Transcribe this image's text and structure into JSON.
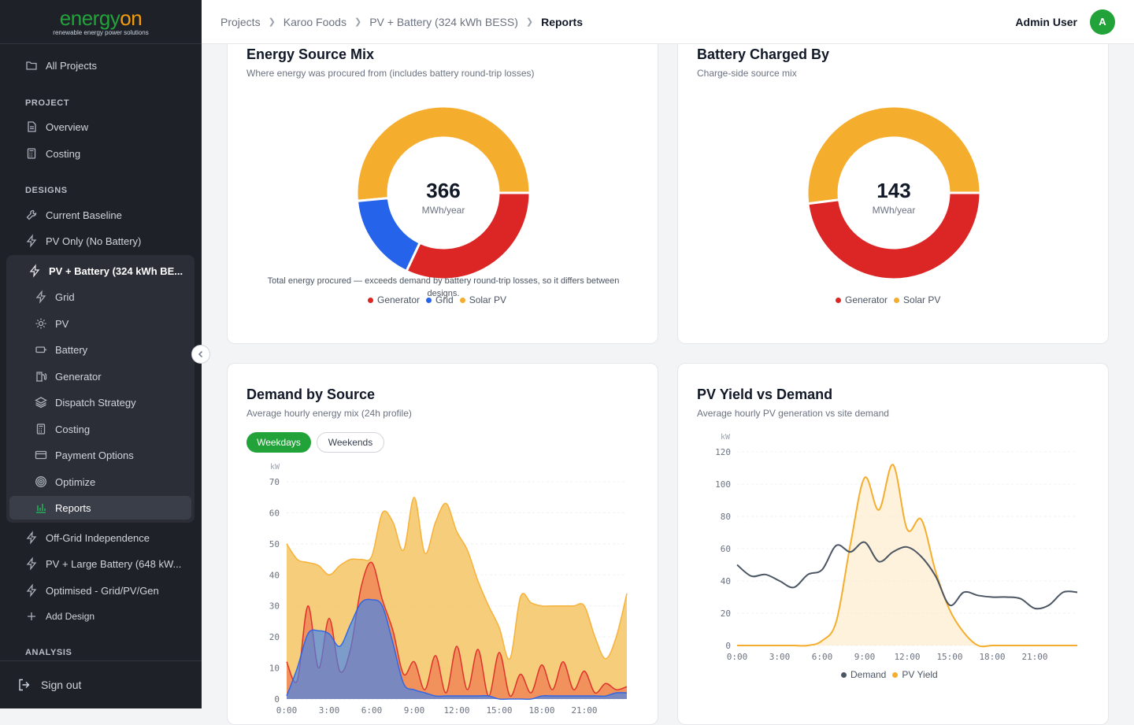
{
  "brand": {
    "name_part1": "energy",
    "name_part2": "on",
    "tagline": "renewable energy power solutions"
  },
  "sidebar": {
    "all_projects": "All Projects",
    "project_label": "PROJECT",
    "project_items": [
      "Overview",
      "Costing"
    ],
    "designs_label": "DESIGNS",
    "designs": [
      "Current Baseline",
      "PV Only (No Battery)",
      "PV + Battery (324 kWh BE..."
    ],
    "sub_items": [
      "Grid",
      "PV",
      "Battery",
      "Generator",
      "Dispatch Strategy",
      "Costing",
      "Payment Options",
      "Optimize",
      "Reports"
    ],
    "active_sub": "Reports",
    "more_designs": [
      "Off-Grid Independence",
      "PV + Large Battery (648 kW...",
      "Optimised - Grid/PV/Gen"
    ],
    "add_design": "Add Design",
    "analysis_label": "ANALYSIS",
    "sign_out": "Sign out"
  },
  "breadcrumb": [
    "Projects",
    "Karoo Foods",
    "PV + Battery (324 kWh BESS)",
    "Reports"
  ],
  "user": {
    "name": "Admin User",
    "initial": "A"
  },
  "colors": {
    "generator": "#dc2626",
    "grid": "#2563eb",
    "solar": "#f5ad2e",
    "demand": "#4b5563",
    "brand": "#22a33a"
  },
  "energy_mix": {
    "title": "Energy Source Mix",
    "subtitle": "Where energy was procured from (includes battery round-trip losses)",
    "total": "366",
    "unit": "MWh/year",
    "note": "Total energy procured — exceeds demand by battery round-trip losses, so it differs between designs.",
    "legend": [
      "Generator",
      "Grid",
      "Solar PV"
    ]
  },
  "battery_charged": {
    "title": "Battery Charged By",
    "subtitle": "Charge-side source mix",
    "total": "143",
    "unit": "MWh/year",
    "legend": [
      "Generator",
      "Solar PV"
    ]
  },
  "demand_by_source": {
    "title": "Demand by Source",
    "subtitle": "Average hourly energy mix (24h profile)",
    "tabs": [
      "Weekdays",
      "Weekends"
    ],
    "active_tab": "Weekdays"
  },
  "pv_yield": {
    "title": "PV Yield vs Demand",
    "subtitle": "Average hourly PV generation vs site demand",
    "legend": [
      "Demand",
      "PV Yield"
    ]
  },
  "chart_data": [
    {
      "type": "pie",
      "title": "Energy Source Mix",
      "labels": [
        "Solar PV",
        "Grid",
        "Generator"
      ],
      "values": [
        51.5,
        16.5,
        32.0
      ],
      "center_value": 366,
      "center_unit": "MWh/year"
    },
    {
      "type": "pie",
      "title": "Battery Charged By",
      "labels": [
        "Solar PV",
        "Generator"
      ],
      "values": [
        52,
        48
      ],
      "center_value": 143,
      "center_unit": "MWh/year"
    },
    {
      "type": "area",
      "title": "Demand by Source",
      "ylabel": "kW",
      "ylim": [
        0,
        70
      ],
      "yticks": [
        0,
        10,
        20,
        30,
        40,
        50,
        60,
        70
      ],
      "xticks": [
        "0:00",
        "3:00",
        "6:00",
        "9:00",
        "12:00",
        "15:00",
        "18:00",
        "21:00"
      ],
      "x": [
        "0:00",
        "0:45",
        "1:30",
        "2:15",
        "3:00",
        "3:45",
        "4:30",
        "5:15",
        "6:00",
        "6:45",
        "7:30",
        "8:15",
        "9:00",
        "9:45",
        "10:30",
        "11:15",
        "12:00",
        "12:45",
        "13:30",
        "14:15",
        "15:00",
        "15:45",
        "16:30",
        "17:15",
        "18:00",
        "18:45",
        "19:30",
        "20:15",
        "21:00",
        "21:45",
        "22:30",
        "23:15",
        "23:59"
      ],
      "series": [
        {
          "name": "Grid",
          "values": [
            1,
            10,
            21,
            22,
            21,
            17,
            24,
            31,
            32,
            30,
            18,
            5,
            3,
            2,
            1,
            1,
            1,
            1,
            1,
            1,
            0,
            0,
            0,
            0,
            1,
            1,
            1,
            1,
            1,
            1,
            1,
            2,
            2
          ]
        },
        {
          "name": "Generator",
          "values": [
            12,
            6,
            30,
            10,
            26,
            9,
            16,
            36,
            44,
            32,
            22,
            8,
            12,
            3,
            14,
            2,
            17,
            3,
            16,
            1,
            15,
            1,
            8,
            2,
            11,
            3,
            12,
            3,
            9,
            2,
            5,
            3,
            4
          ]
        },
        {
          "name": "Solar PV",
          "values": [
            50,
            45,
            44,
            43,
            40,
            43,
            45,
            45,
            46,
            60,
            57,
            48,
            65,
            47,
            57,
            63,
            54,
            48,
            38,
            30,
            23,
            13,
            33,
            31,
            30,
            30,
            30,
            30,
            30,
            20,
            13,
            20,
            34
          ]
        }
      ]
    },
    {
      "type": "line",
      "title": "PV Yield vs Demand",
      "ylabel": "kW",
      "ylim": [
        0,
        120
      ],
      "yticks": [
        0,
        20,
        40,
        60,
        80,
        100,
        120
      ],
      "xticks": [
        "0:00",
        "3:00",
        "6:00",
        "9:00",
        "12:00",
        "15:00",
        "18:00",
        "21:00"
      ],
      "x": [
        "0:00",
        "1:00",
        "2:00",
        "3:00",
        "4:00",
        "5:00",
        "6:00",
        "7:00",
        "8:00",
        "9:00",
        "10:00",
        "11:00",
        "12:00",
        "13:00",
        "14:00",
        "15:00",
        "16:00",
        "17:00",
        "18:00",
        "19:00",
        "20:00",
        "21:00",
        "22:00",
        "23:00"
      ],
      "series": [
        {
          "name": "Demand",
          "values": [
            50,
            43,
            44,
            40,
            36,
            44,
            47,
            62,
            58,
            64,
            52,
            58,
            61,
            55,
            43,
            25,
            33,
            31,
            30,
            30,
            29,
            23,
            25,
            33
          ]
        },
        {
          "name": "PV Yield",
          "values": [
            0,
            0,
            0,
            0,
            0,
            0,
            3,
            15,
            63,
            104,
            84,
            112,
            72,
            78,
            46,
            22,
            8,
            0,
            0,
            0,
            0,
            0,
            0,
            0
          ]
        }
      ]
    }
  ]
}
